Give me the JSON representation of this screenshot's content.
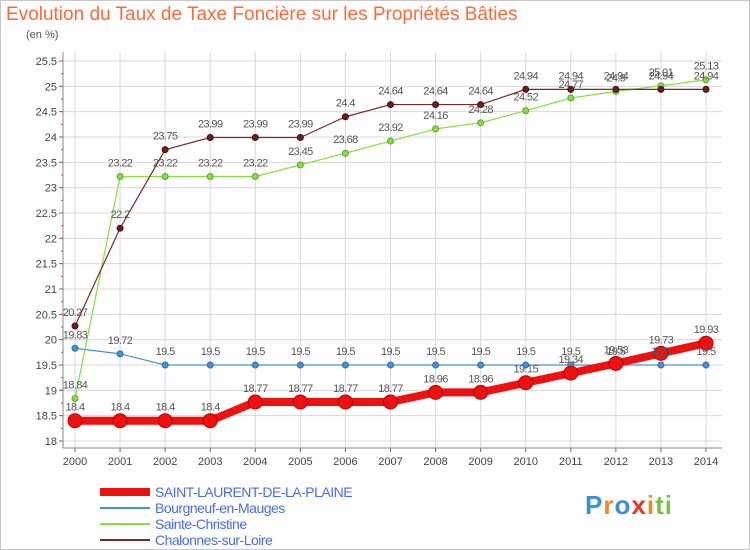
{
  "title": "Evolution du Taux de Taxe Foncière sur les Propriétés Bâties",
  "unit": "(en %)",
  "logo": {
    "letters": [
      "P",
      "r",
      "o",
      "x",
      "i",
      "t",
      "i"
    ],
    "colors": [
      "#3a8fd8",
      "#f08a1c",
      "#3a8fd8",
      "#e8342a",
      "#f08a1c",
      "#7bc043",
      "#7bc043"
    ]
  },
  "chart_data": {
    "type": "line",
    "x": [
      2000,
      2001,
      2002,
      2003,
      2004,
      2005,
      2006,
      2007,
      2008,
      2009,
      2010,
      2011,
      2012,
      2013,
      2014
    ],
    "ylim": [
      18,
      25.5
    ],
    "yticks": [
      18,
      18.5,
      19,
      19.5,
      20,
      20.5,
      21,
      21.5,
      22,
      22.5,
      23,
      23.5,
      24,
      24.5,
      25,
      25.5
    ],
    "ytick_labels": [
      "18",
      "18.5",
      "19",
      "19.5",
      "20",
      "20.5",
      "21",
      "21.5",
      "22",
      "22.5",
      "23",
      "23.5",
      "24",
      "24.5",
      "25",
      "25.5"
    ],
    "grid": true,
    "legend_position": "bottom-left",
    "series": [
      {
        "name": "SAINT-LAURENT-DE-LA-PLAINE",
        "color": "#ee1111",
        "values": [
          18.4,
          18.4,
          18.4,
          18.4,
          18.77,
          18.77,
          18.77,
          18.77,
          18.96,
          18.96,
          19.15,
          19.34,
          19.53,
          19.73,
          19.93
        ],
        "labels": [
          "18.4",
          "18.4",
          "18.4",
          "18.4",
          "18.77",
          "18.77",
          "18.77",
          "18.77",
          "18.96",
          "18.96",
          "19.15",
          "19.34",
          "19.53",
          "19.73",
          "19.93"
        ]
      },
      {
        "name": "Bourgneuf-en-Mauges",
        "color": "#4a90d0",
        "values": [
          19.83,
          19.72,
          19.5,
          19.5,
          19.5,
          19.5,
          19.5,
          19.5,
          19.5,
          19.5,
          19.5,
          19.5,
          19.5,
          19.5,
          19.5
        ],
        "labels": [
          "19.83",
          "19.72",
          "19.5",
          "19.5",
          "19.5",
          "19.5",
          "19.5",
          "19.5",
          "19.5",
          "19.5",
          "19.5",
          "19.5",
          "19.5",
          "19.5",
          "19.5"
        ]
      },
      {
        "name": "Sainte-Christine",
        "color": "#88dd44",
        "values": [
          18.84,
          23.22,
          23.22,
          23.22,
          23.22,
          23.45,
          23.68,
          23.92,
          24.16,
          24.28,
          24.52,
          24.77,
          24.9,
          25.01,
          25.13
        ],
        "labels": [
          "18.84",
          "23.22",
          "23.22",
          "23.22",
          "23.22",
          "23.45",
          "23.68",
          "23.92",
          "24.16",
          "24.28",
          "24.52",
          "24.77",
          "24.9",
          "25.01",
          "25.13"
        ]
      },
      {
        "name": "Chalonnes-sur-Loire",
        "color": "#7a2a2a",
        "values": [
          20.27,
          22.2,
          23.75,
          23.99,
          23.99,
          23.99,
          24.4,
          24.64,
          24.64,
          24.64,
          24.94,
          24.94,
          24.94,
          24.94,
          24.94
        ],
        "labels": [
          "20.27",
          "22.2",
          "23.75",
          "23.99",
          "23.99",
          "23.99",
          "24.4",
          "24.64",
          "24.64",
          "24.64",
          "24.94",
          "24.94",
          "24.94",
          "24.94",
          "24.94"
        ]
      }
    ]
  }
}
